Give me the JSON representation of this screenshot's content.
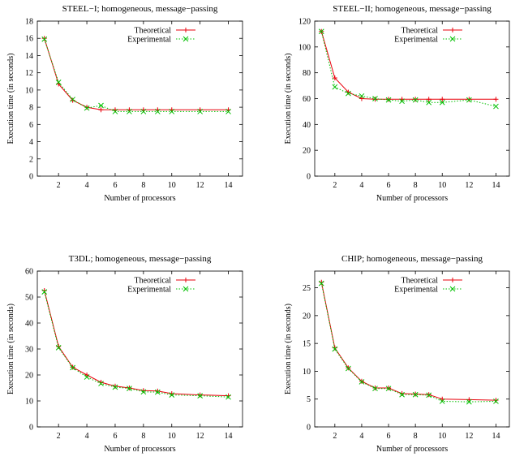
{
  "chart_data": [
    {
      "type": "line",
      "title": "STEEL−I; homogeneous, message−passing",
      "xlabel": "Number of processors",
      "ylabel": "Execution time (in seconds)",
      "xlim": [
        0.5,
        15
      ],
      "ylim": [
        0,
        18
      ],
      "xticks": [
        2,
        4,
        6,
        8,
        10,
        12,
        14
      ],
      "yticks": [
        0,
        2,
        4,
        6,
        8,
        10,
        12,
        14,
        16,
        18
      ],
      "legend": "top-right",
      "series": [
        {
          "name": "Theoretical",
          "color": "#e8000b",
          "marker": "plus",
          "dash": "solid",
          "x": [
            1,
            2,
            3,
            4,
            5,
            6,
            7,
            8,
            9,
            10,
            12,
            14
          ],
          "y": [
            16.0,
            10.7,
            8.8,
            8.0,
            7.7,
            7.7,
            7.7,
            7.7,
            7.7,
            7.7,
            7.7,
            7.7
          ]
        },
        {
          "name": "Experimental",
          "color": "#00c000",
          "marker": "cross",
          "dash": "dotted",
          "x": [
            1,
            2,
            3,
            4,
            5,
            6,
            7,
            8,
            9,
            10,
            12,
            14
          ],
          "y": [
            15.9,
            10.9,
            8.9,
            7.9,
            8.2,
            7.5,
            7.5,
            7.5,
            7.5,
            7.5,
            7.5,
            7.5
          ]
        }
      ]
    },
    {
      "type": "line",
      "title": "STEEL−II; homogeneous, message−passing",
      "xlabel": "Number of processors",
      "ylabel": "Execution time (in seconds)",
      "xlim": [
        0.5,
        15
      ],
      "ylim": [
        0,
        120
      ],
      "xticks": [
        2,
        4,
        6,
        8,
        10,
        12,
        14
      ],
      "yticks": [
        0,
        20,
        40,
        60,
        80,
        100,
        120
      ],
      "legend": "top-right",
      "series": [
        {
          "name": "Theoretical",
          "color": "#e8000b",
          "marker": "plus",
          "dash": "solid",
          "x": [
            1,
            2,
            3,
            4,
            5,
            6,
            7,
            8,
            9,
            10,
            12,
            14
          ],
          "y": [
            112,
            76,
            65,
            60,
            59.5,
            59.5,
            59.5,
            59.5,
            59.5,
            59.5,
            59.5,
            59.5
          ]
        },
        {
          "name": "Experimental",
          "color": "#00c000",
          "marker": "cross",
          "dash": "dotted",
          "x": [
            1,
            2,
            3,
            4,
            5,
            6,
            7,
            8,
            9,
            10,
            12,
            14
          ],
          "y": [
            112,
            69,
            64,
            62,
            60,
            59,
            58,
            59,
            57,
            57,
            59,
            54
          ]
        }
      ]
    },
    {
      "type": "line",
      "title": "T3DL; homogeneous, message−passing",
      "xlabel": "Number of processors",
      "ylabel": "Execution time (in seconds)",
      "xlim": [
        0.5,
        15
      ],
      "ylim": [
        0,
        60
      ],
      "xticks": [
        2,
        4,
        6,
        8,
        10,
        12,
        14
      ],
      "yticks": [
        0,
        10,
        20,
        30,
        40,
        50,
        60
      ],
      "legend": "top-right",
      "series": [
        {
          "name": "Theoretical",
          "color": "#e8000b",
          "marker": "plus",
          "dash": "solid",
          "x": [
            1,
            2,
            3,
            4,
            5,
            6,
            7,
            8,
            9,
            10,
            12,
            14
          ],
          "y": [
            52.5,
            31,
            23,
            20,
            17.2,
            15.7,
            15,
            14,
            13.8,
            12.8,
            12.3,
            12
          ]
        },
        {
          "name": "Experimental",
          "color": "#00c000",
          "marker": "cross",
          "dash": "dotted",
          "x": [
            1,
            2,
            3,
            4,
            5,
            6,
            7,
            8,
            9,
            10,
            12,
            14
          ],
          "y": [
            52,
            30.5,
            22.8,
            19.2,
            16.7,
            15.3,
            14.8,
            13.5,
            13.4,
            12.3,
            12,
            11.5
          ]
        }
      ]
    },
    {
      "type": "line",
      "title": "CHIP; homogeneous, message−passing",
      "xlabel": "Number of processors",
      "ylabel": "Execution time (in seconds)",
      "xlim": [
        0.5,
        15
      ],
      "ylim": [
        0,
        28
      ],
      "xticks": [
        2,
        4,
        6,
        8,
        10,
        12,
        14
      ],
      "yticks": [
        0,
        5,
        10,
        15,
        20,
        25
      ],
      "legend": "top-right",
      "series": [
        {
          "name": "Theoretical",
          "color": "#e8000b",
          "marker": "plus",
          "dash": "solid",
          "x": [
            1,
            2,
            3,
            4,
            5,
            6,
            7,
            8,
            9,
            10,
            12,
            14
          ],
          "y": [
            26,
            14.2,
            10.6,
            8.2,
            7.0,
            7.0,
            6.0,
            5.9,
            5.8,
            5.0,
            4.9,
            4.8
          ]
        },
        {
          "name": "Experimental",
          "color": "#00c000",
          "marker": "cross",
          "dash": "dotted",
          "x": [
            1,
            2,
            3,
            4,
            5,
            6,
            7,
            8,
            9,
            10,
            12,
            14
          ],
          "y": [
            25.8,
            14.0,
            10.5,
            8.1,
            6.9,
            6.9,
            5.8,
            5.8,
            5.7,
            4.6,
            4.5,
            4.6
          ]
        }
      ]
    }
  ]
}
